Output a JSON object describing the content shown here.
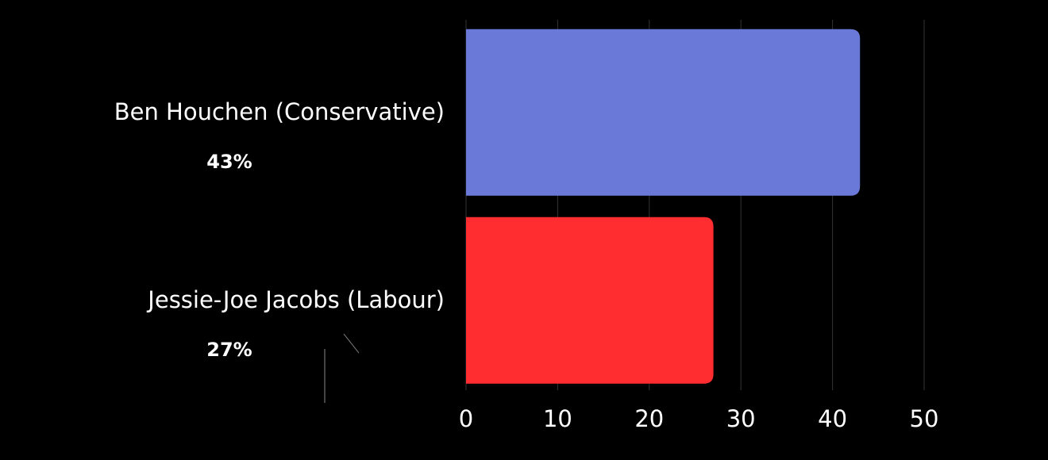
{
  "chart_data": {
    "type": "barh",
    "categories": [
      "Ben Houchen (Conservative)",
      "Jessie-Joe Jacobs (Labour)"
    ],
    "values": [
      43,
      27
    ],
    "value_labels": [
      "43%",
      "27%"
    ],
    "colors": [
      "#6a78d8",
      "#ff2d2f"
    ],
    "xlim": [
      0,
      50
    ],
    "xticks": [
      0,
      10,
      20,
      30,
      40,
      50
    ],
    "grid": true
  }
}
